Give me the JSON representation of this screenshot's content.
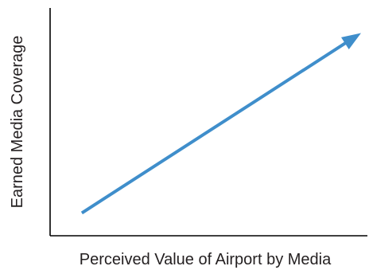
{
  "chart_data": {
    "type": "line",
    "xlabel": "Perceived Value of Airport by Media",
    "ylabel": "Earned Media Coverage",
    "series": [
      {
        "style": "arrow",
        "color": "#3f8ecb",
        "x": [
          0.1,
          0.98
        ],
        "y": [
          0.1,
          0.89
        ]
      }
    ],
    "xlim": [
      0,
      1
    ],
    "ylim": [
      0,
      1
    ],
    "grid": false,
    "ticks": false,
    "legend": false
  }
}
